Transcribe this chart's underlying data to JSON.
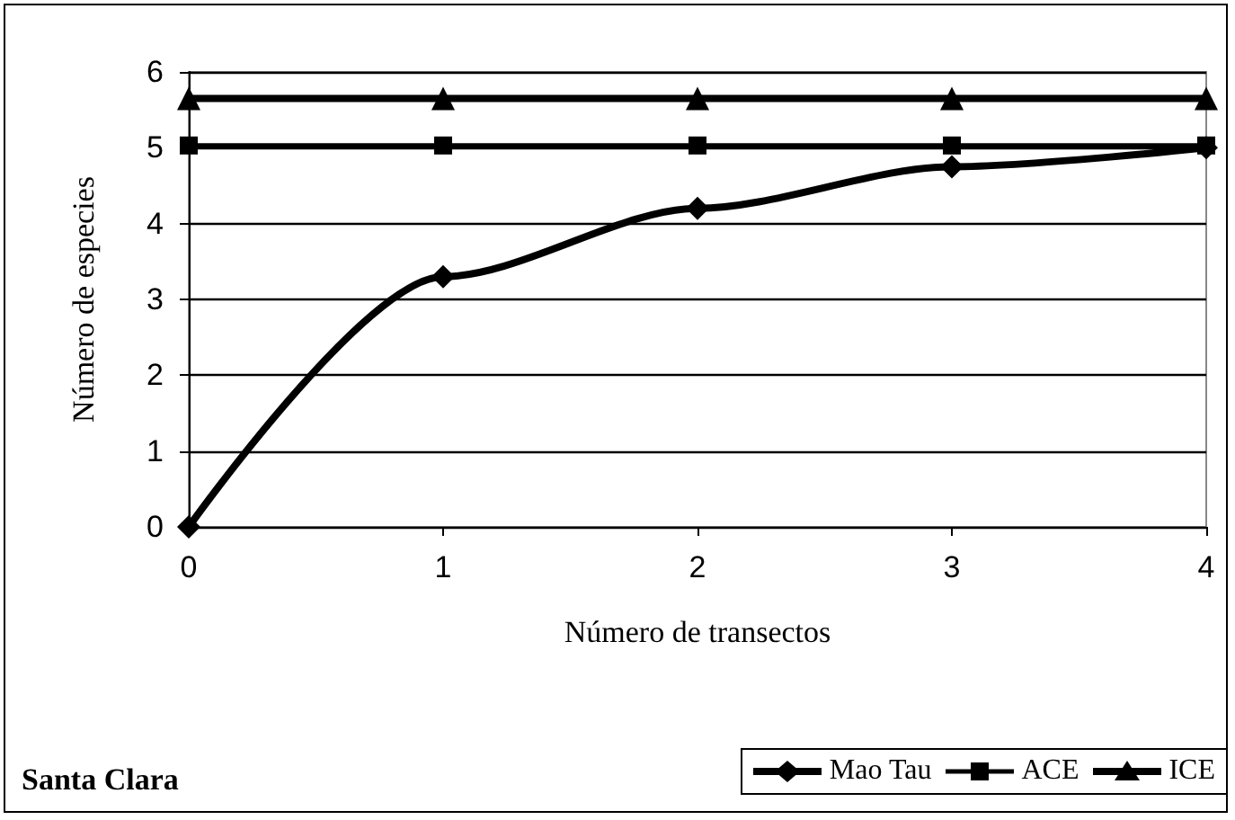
{
  "chart_data": {
    "type": "line",
    "xlabel": "Número de transectos",
    "ylabel": "Número de especies",
    "x": [
      0,
      1,
      2,
      3,
      4
    ],
    "xlim": [
      0,
      4
    ],
    "xticks": [
      0,
      1,
      2,
      3,
      4
    ],
    "ylim": [
      0,
      6
    ],
    "yticks": [
      0,
      1,
      2,
      3,
      4,
      5,
      6
    ],
    "series": [
      {
        "name": "Mao Tau",
        "color": "#000000",
        "marker": "diamond",
        "values": [
          0,
          3.3,
          4.2,
          4.75,
          5.0
        ]
      },
      {
        "name": "ACE",
        "color": "#000000",
        "marker": "square",
        "values": [
          5.03,
          5.03,
          5.03,
          5.03,
          5.03
        ]
      },
      {
        "name": "ICE",
        "color": "#000000",
        "marker": "triangle",
        "values": [
          5.65,
          5.65,
          5.65,
          5.65,
          5.65
        ]
      }
    ],
    "grid": "y",
    "legend": "bottom right",
    "line_style": "solid",
    "annotations": [
      "Santa Clara"
    ]
  }
}
